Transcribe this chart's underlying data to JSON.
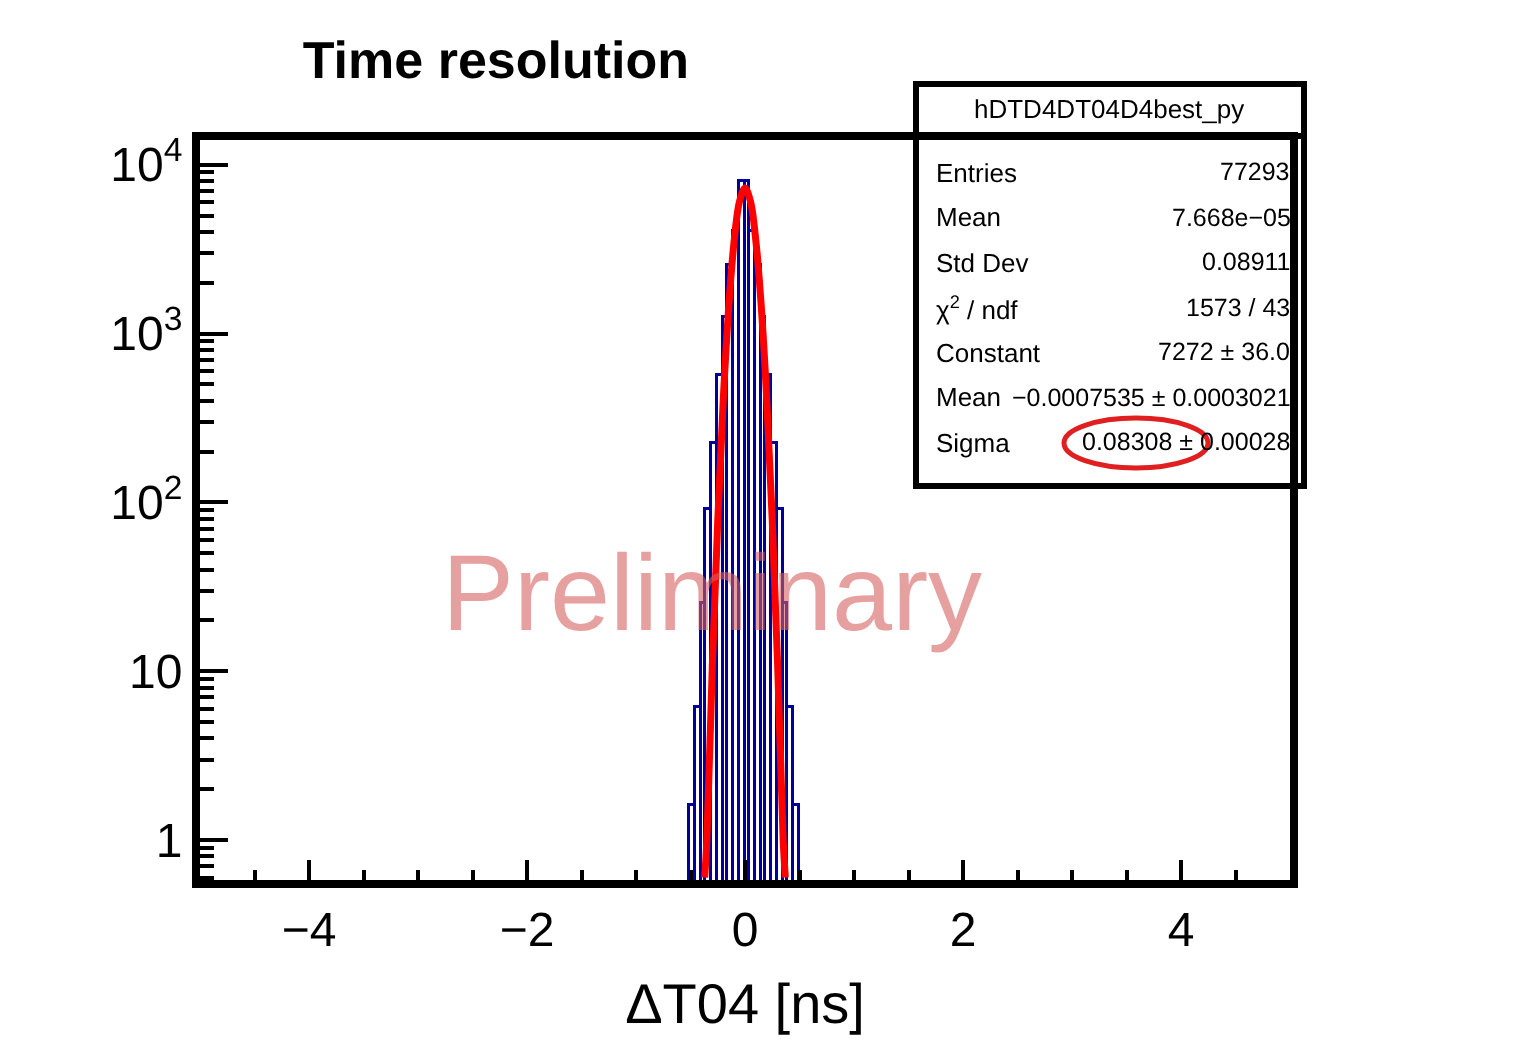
{
  "chart_data": {
    "type": "histogram",
    "title": "Time resolution",
    "xlabel": "ΔT04 [ns]",
    "bins": [
      -0.5,
      -0.45,
      -0.4,
      -0.35,
      -0.3,
      -0.25,
      -0.2,
      -0.15,
      -0.1,
      -0.05,
      0,
      0.05,
      0.1,
      0.15,
      0.2,
      0.25,
      0.3,
      0.35,
      0.4,
      0.45,
      0.5
    ],
    "values": [
      1.6,
      6,
      25,
      90,
      220,
      560,
      1250,
      2500,
      4000,
      8000,
      8000,
      4000,
      2500,
      1250,
      560,
      220,
      90,
      25,
      6,
      1.6
    ],
    "color": "#000099",
    "series": [
      {
        "type": "line",
        "color": "#ff0000",
        "x": [
          -0.37,
          -0.35,
          -0.3,
          -0.25,
          -0.2,
          -0.15,
          -0.1,
          -0.05,
          0,
          0.05,
          0.1,
          0.15,
          0.2,
          0.25,
          0.3,
          0.35,
          0.37
        ],
        "values": [
          0.6,
          1.0,
          10.6,
          78,
          399,
          1420,
          3518,
          6065,
          7272,
          6065,
          3518,
          1420,
          399,
          78,
          10.6,
          1.0,
          0.6
        ]
      }
    ],
    "log": "y",
    "xlim": [
      -5,
      5
    ],
    "xticks": [
      {
        "value": -4,
        "label": "−4"
      },
      {
        "value": -2,
        "label": "−2"
      },
      0,
      2,
      4
    ],
    "ylim": [
      0.58,
      14000
    ],
    "yticks": [
      1,
      10,
      {
        "value": 100,
        "label": "10$^{2}$"
      },
      {
        "value": 1000,
        "label": "10$^{3}$"
      },
      {
        "value": 10000,
        "label": "10$^{4}$"
      }
    ],
    "annotations": [
      "Preliminary",
      "hDTD4DT04D4best_py",
      "Entries",
      "77293",
      "Mean",
      "7.668e−05",
      "Std Dev",
      "0.08911",
      "χ$^{2}$ / ndf",
      "1573 / 43",
      "Constant",
      "7272 ± 36.0",
      "Mean",
      "−0.0007535 ± 0.0003021",
      "Sigma",
      "0.08308 ± 0.00028"
    ]
  }
}
